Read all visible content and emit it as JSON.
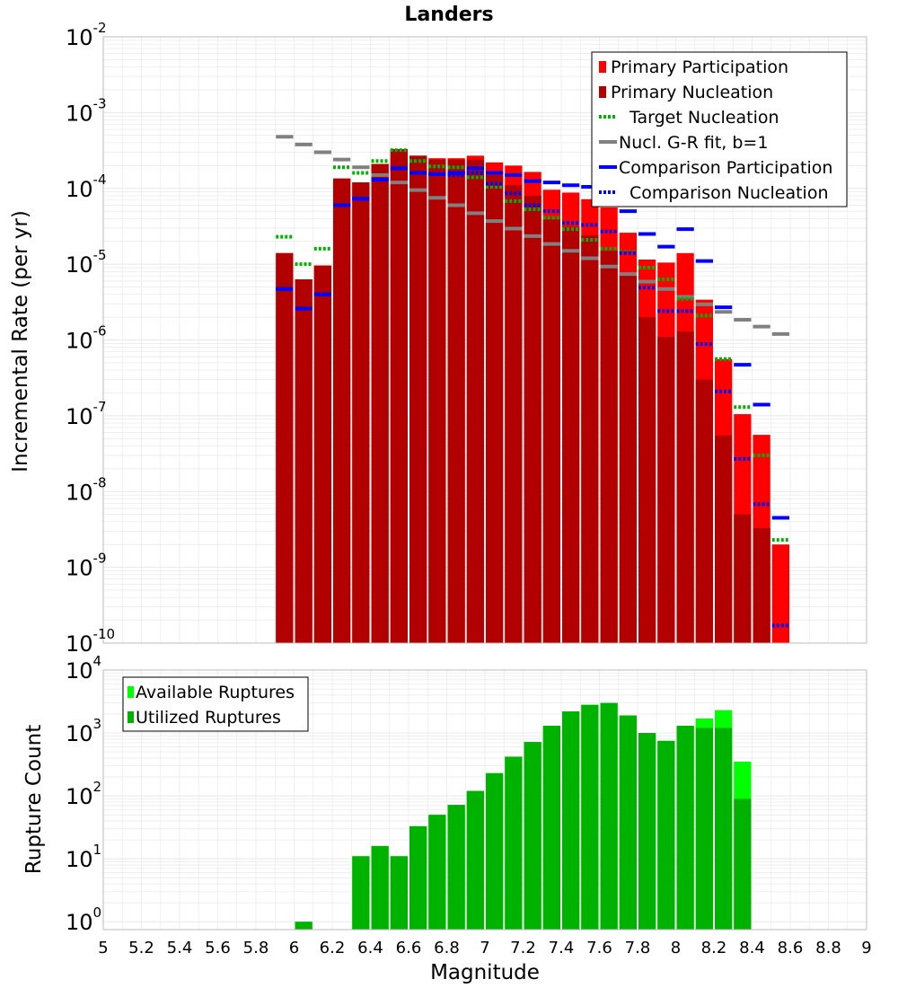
{
  "title": "Landers",
  "colors": {
    "primary_participation": "#ff0000",
    "primary_nucleation": "#b20000",
    "target_nucleation": "#00b200",
    "gr_fit": "#808080",
    "comparison": "#0000ff",
    "available_ruptures": "#00ff00",
    "utilized_ruptures": "#00b200",
    "grid": "#e8e8e8"
  },
  "chart_data": [
    {
      "type": "bar",
      "title": "Landers",
      "xlabel": "",
      "ylabel": "Incremental Rate (per yr)",
      "yscale": "log",
      "xlim": [
        5,
        9
      ],
      "ylim": [
        1e-10,
        0.01
      ],
      "y_ticks": [
        {
          "base": "10",
          "exp": "-10"
        },
        {
          "base": "10",
          "exp": "-9"
        },
        {
          "base": "10",
          "exp": "-8"
        },
        {
          "base": "10",
          "exp": "-7"
        },
        {
          "base": "10",
          "exp": "-6"
        },
        {
          "base": "10",
          "exp": "-5"
        },
        {
          "base": "10",
          "exp": "-4"
        },
        {
          "base": "10",
          "exp": "-3"
        },
        {
          "base": "10",
          "exp": "-2"
        }
      ],
      "grid": true,
      "legend_position": "top-right",
      "x": [
        5.95,
        6.05,
        6.15,
        6.25,
        6.35,
        6.45,
        6.55,
        6.65,
        6.75,
        6.85,
        6.95,
        7.05,
        7.15,
        7.25,
        7.35,
        7.45,
        7.55,
        7.65,
        7.75,
        7.85,
        7.95,
        8.05,
        8.15,
        8.25,
        8.35,
        8.45,
        8.55
      ],
      "series": [
        {
          "name": "Primary Participation",
          "style": "bar",
          "values": [
            1.4e-05,
            6.3e-06,
            9.6e-06,
            0.000135,
            0.00012,
            0.00021,
            0.00033,
            0.00027,
            0.00025,
            0.00025,
            0.00027,
            0.00022,
            0.0002,
            0.000165,
            9.6e-05,
            8.8e-05,
            7.2e-05,
            5.6e-05,
            2.6e-05,
            1.15e-05,
            1.05e-05,
            1.4e-05,
            3.4e-06,
            5.6e-07,
            1.05e-07,
            5.6e-08,
            2e-09
          ]
        },
        {
          "name": "Primary Nucleation",
          "style": "bar",
          "values": [
            1.4e-05,
            6.3e-06,
            9.6e-06,
            0.000135,
            0.00012,
            0.00021,
            0.00033,
            0.00027,
            0.00024,
            0.00024,
            0.00024,
            0.00015,
            0.00011,
            8e-05,
            3.9e-05,
            3.1e-05,
            2.4e-05,
            1.5e-05,
            7.5e-06,
            2e-06,
            1.1e-06,
            1.3e-06,
            3e-07,
            5.5e-08,
            5e-09,
            3.3e-09,
            null
          ]
        },
        {
          "name": "Target Nucleation",
          "style": "dotted",
          "values": [
            2.3e-05,
            1e-05,
            1.6e-05,
            0.00019,
            0.00016,
            0.00023,
            0.00032,
            0.00023,
            0.000195,
            0.00019,
            0.00014,
            0.000105,
            6.8e-05,
            5.3e-05,
            4.1e-05,
            2.9e-05,
            2.1e-05,
            1.6e-05,
            1.45e-05,
            9e-06,
            6.3e-06,
            3.5e-06,
            2.1e-06,
            5.6e-07,
            1.3e-07,
            3e-08,
            2.3e-09
          ]
        },
        {
          "name": "Nucl. G-R fit, b=1",
          "style": "solid",
          "values": [
            0.00048,
            0.00038,
            0.0003,
            0.00024,
            0.00019,
            0.00015,
            0.00012,
            9.5e-05,
            7.5e-05,
            6e-05,
            4.7e-05,
            3.7e-05,
            2.95e-05,
            2.35e-05,
            1.85e-05,
            1.5e-05,
            1.2e-05,
            9.3e-06,
            7.4e-06,
            5.9e-06,
            4.7e-06,
            3.7e-06,
            2.95e-06,
            2.35e-06,
            1.85e-06,
            1.5e-06,
            1.2e-06
          ]
        },
        {
          "name": "Comparison Participation",
          "style": "solid",
          "values": [
            4.7e-06,
            2.6e-06,
            4e-06,
            6e-05,
            7.3e-05,
            0.00013,
            0.000185,
            0.00016,
            0.000155,
            0.00016,
            0.000185,
            0.00016,
            0.00015,
            0.000125,
            0.00012,
            0.00011,
            0.000105,
            9e-05,
            5e-05,
            2.5e-05,
            1.7e-05,
            2.9e-05,
            1.1e-05,
            2.7e-06,
            4.7e-07,
            1.4e-07,
            4.5e-09
          ]
        },
        {
          "name": "Comparison Nucleation",
          "style": "dotted",
          "values": [
            4.7e-06,
            2.6e-06,
            4e-06,
            6e-05,
            7.3e-05,
            0.00013,
            0.000185,
            0.00016,
            0.000155,
            0.00015,
            0.00016,
            0.000115,
            8.6e-05,
            6e-05,
            5e-05,
            3.5e-05,
            3.3e-05,
            2.7e-05,
            1.4e-05,
            4.9e-06,
            2.4e-06,
            2.4e-06,
            8.8e-07,
            2.1e-07,
            2.7e-08,
            6.8e-09,
            1.7e-10
          ]
        }
      ]
    },
    {
      "type": "bar",
      "title": "",
      "xlabel": "Magnitude",
      "ylabel": "Rupture Count",
      "yscale": "log",
      "xlim": [
        5,
        9
      ],
      "ylim": [
        0.75,
        10000
      ],
      "y_ticks": [
        {
          "base": "10",
          "exp": "0"
        },
        {
          "base": "10",
          "exp": "1"
        },
        {
          "base": "10",
          "exp": "2"
        },
        {
          "base": "10",
          "exp": "3"
        },
        {
          "base": "10",
          "exp": "4"
        }
      ],
      "x_tick_labels": [
        "5",
        "5.2",
        "5.4",
        "5.6",
        "5.8",
        "6",
        "6.2",
        "6.4",
        "6.6",
        "6.8",
        "7",
        "7.2",
        "7.4",
        "7.6",
        "7.8",
        "8",
        "8.2",
        "8.4",
        "8.6",
        "8.8",
        "9"
      ],
      "grid": true,
      "legend_position": "top-left",
      "x": [
        6.05,
        6.35,
        6.45,
        6.55,
        6.65,
        6.75,
        6.85,
        6.95,
        7.05,
        7.15,
        7.25,
        7.35,
        7.45,
        7.55,
        7.65,
        7.75,
        7.85,
        7.95,
        8.05,
        8.15,
        8.25,
        8.35
      ],
      "series": [
        {
          "name": "Available Ruptures",
          "values": [
            1,
            11,
            16,
            11,
            33,
            50,
            72,
            120,
            230,
            420,
            720,
            1300,
            2200,
            2800,
            3000,
            1900,
            1000,
            750,
            1300,
            1700,
            2300,
            350
          ]
        },
        {
          "name": "Utilized Ruptures",
          "values": [
            1,
            11,
            16,
            11,
            33,
            50,
            72,
            120,
            230,
            420,
            720,
            1300,
            2200,
            2800,
            3000,
            1900,
            1000,
            750,
            1300,
            1200,
            1200,
            90
          ]
        }
      ]
    }
  ]
}
